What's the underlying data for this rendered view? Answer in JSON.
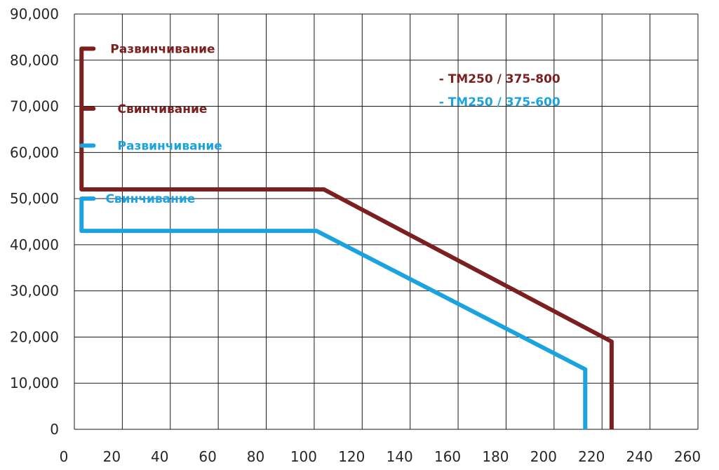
{
  "chart_data": {
    "type": "line",
    "title": "",
    "xlabel": "",
    "ylabel": "",
    "xlim": [
      0,
      260
    ],
    "ylim": [
      0,
      90000
    ],
    "grid": true,
    "x_ticks": [
      0,
      20,
      40,
      60,
      80,
      100,
      120,
      140,
      160,
      180,
      200,
      220,
      240,
      260
    ],
    "y_ticks": [
      0,
      10000,
      20000,
      30000,
      40000,
      50000,
      60000,
      70000,
      80000,
      90000
    ],
    "x_tick_labels": [
      "0",
      "20",
      "40",
      "60",
      "80",
      "100",
      "120",
      "140",
      "160",
      "180",
      "200",
      "220",
      "240",
      "260"
    ],
    "y_tick_labels": [
      "0",
      "10,000",
      "20,000",
      "30,000",
      "40,000",
      "50,000",
      "60,000",
      "70,000",
      "80,000",
      "90,000"
    ],
    "series": [
      {
        "name": "- TM250 / 375-800",
        "color": "#7b1f1f",
        "points": [
          [
            3,
            82500
          ],
          [
            3,
            52000
          ],
          [
            104,
            52000
          ],
          [
            224,
            19000
          ],
          [
            224,
            0
          ]
        ]
      },
      {
        "name": "- TM250 / 375-600",
        "color": "#1aa3e0",
        "points": [
          [
            3,
            50000
          ],
          [
            3,
            43000
          ],
          [
            101,
            43000
          ],
          [
            213,
            13000
          ],
          [
            213,
            0
          ]
        ]
      }
    ],
    "annotations": [
      {
        "text": "Развинчивание",
        "color": "#7b1f1f",
        "marker": [
          [
            3,
            82500
          ],
          [
            8,
            82500
          ]
        ],
        "anchor": [
          15,
          82500
        ]
      },
      {
        "text": "Свинчивание",
        "color": "#7b1f1f",
        "marker": [
          [
            3,
            69500
          ],
          [
            8,
            69500
          ]
        ],
        "anchor": [
          18,
          69500
        ]
      },
      {
        "text": "Развинчивание",
        "color": "#1aa3e0",
        "marker": [
          [
            3,
            61500
          ],
          [
            8,
            61500
          ]
        ],
        "anchor": [
          18,
          61500
        ]
      },
      {
        "text": "Свинчивание",
        "color": "#1aa3e0",
        "marker": [
          [
            3,
            50000
          ],
          [
            8,
            50000
          ]
        ],
        "anchor": [
          13,
          50000
        ]
      }
    ],
    "legend": {
      "placement": "top-right",
      "entries": [
        {
          "text": "- TM250 / 375-800",
          "color": "#7b1f1f",
          "anchor": [
            152,
            76000
          ]
        },
        {
          "text": "- TM250 / 375-600",
          "color": "#1aa3e0",
          "anchor": [
            152,
            71000
          ]
        }
      ]
    }
  }
}
